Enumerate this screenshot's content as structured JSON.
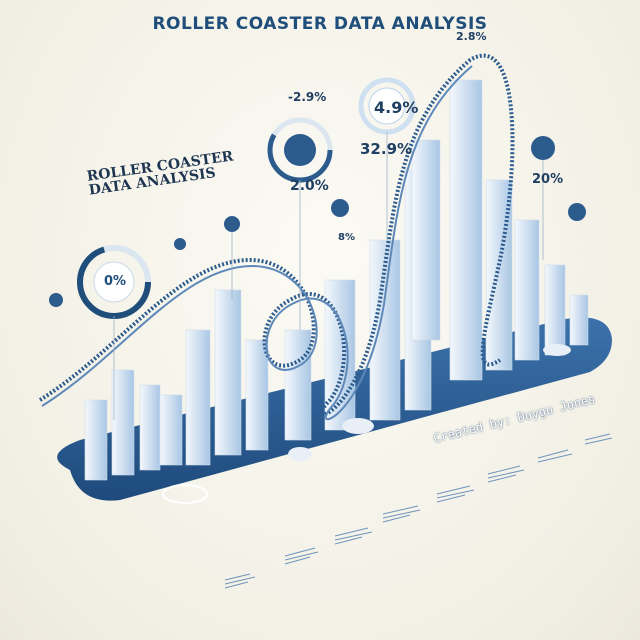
{
  "header": {
    "title": "ROLLER COASTER DATA ANALYSIS"
  },
  "panel": {
    "subtitle_line1": "ROLLER COASTER",
    "subtitle_line2": "DATA ANALYSIS"
  },
  "footer": {
    "credit": "Created by: Duygu Jones"
  },
  "labels": {
    "top_right": "2.8%",
    "upper_left": "-2.9%",
    "circle_big": "4.9%",
    "mid_center": "32.9%",
    "mid_left": "2.0%",
    "right_side": "20%",
    "small_left": "0%",
    "small_mid": "8%"
  },
  "colors": {
    "base_dark": "#2b5e96",
    "bar_light": "#dfeaf6",
    "bar_mid": "#9fbfe0",
    "accent": "#1f4e7a"
  }
}
